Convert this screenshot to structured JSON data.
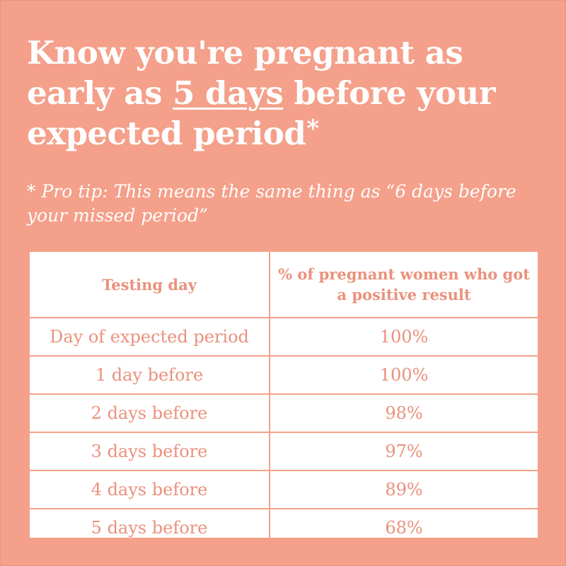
{
  "headline": {
    "part1": "Know you're pregnant as early as ",
    "underlined": "5 days",
    "part2": " before your expected period",
    "asterisk": "*"
  },
  "protip": "* Pro tip: This means the same thing as “6 days before your missed period”",
  "table": {
    "headers": [
      "Testing day",
      "% of pregnant women who got a positive result"
    ],
    "rows": [
      [
        "Day of expected period",
        "100%"
      ],
      [
        "1 day before",
        "100%"
      ],
      [
        "2 days before",
        "98%"
      ],
      [
        "3 days before",
        "97%"
      ],
      [
        "4 days before",
        "89%"
      ],
      [
        "5 days before",
        "68%"
      ]
    ]
  },
  "colors": {
    "background": "#f4a08a",
    "table_text": "#ea917c",
    "table_bg": "#ffffff"
  }
}
